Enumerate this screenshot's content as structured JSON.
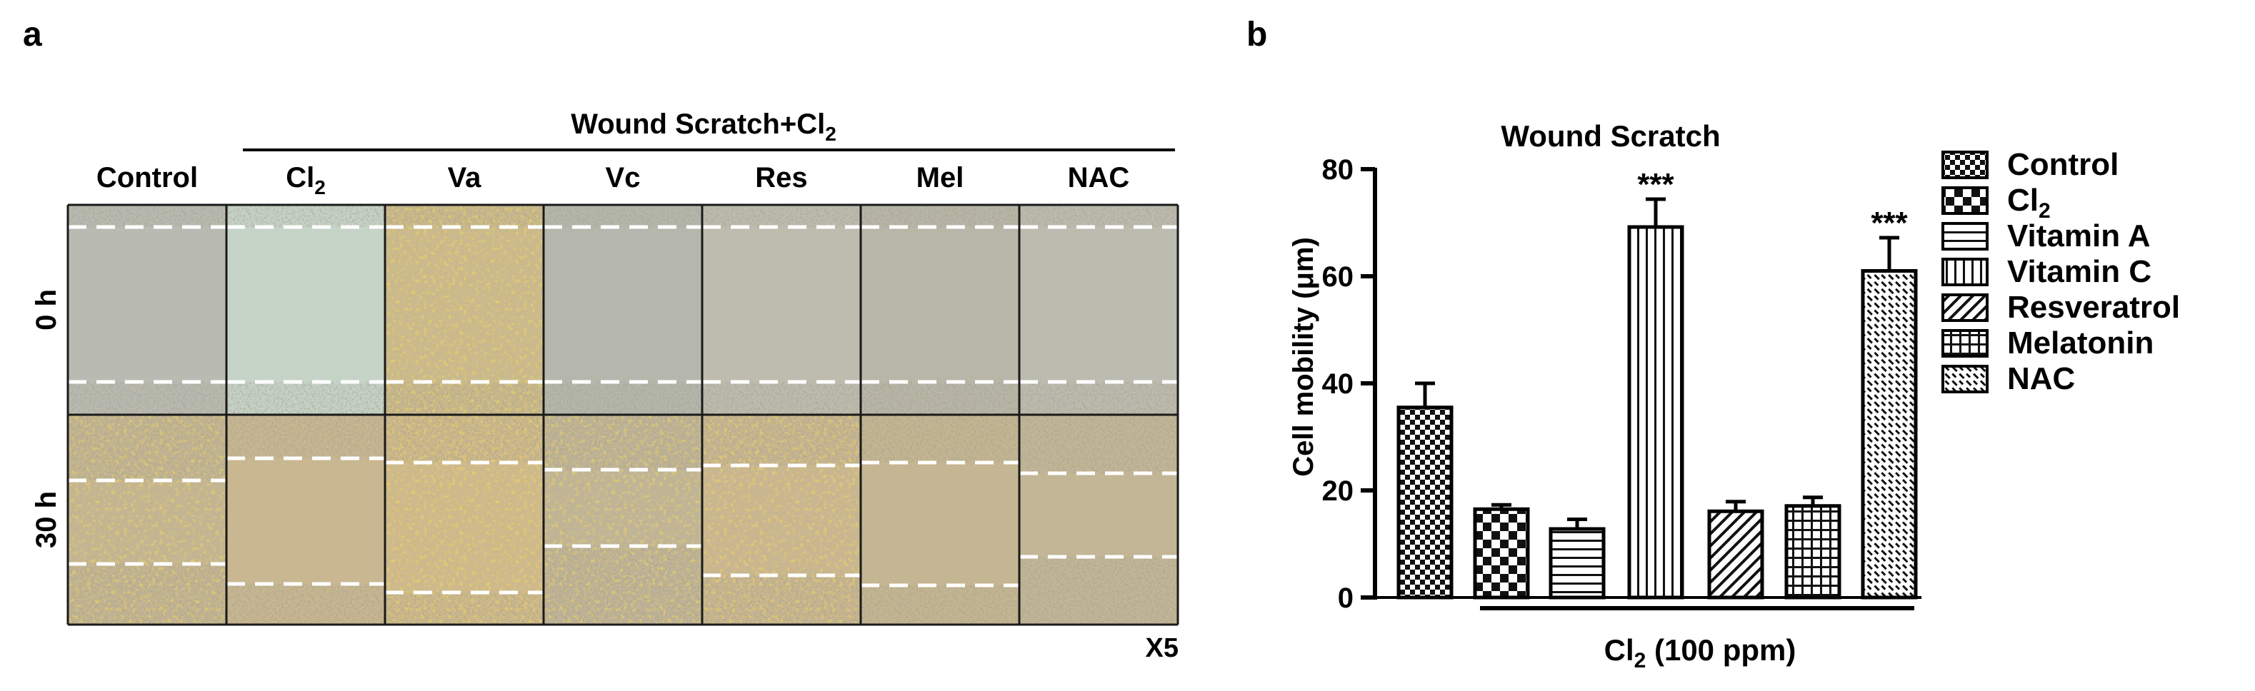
{
  "panel_a": {
    "label": "a",
    "group_header": "Wound Scratch+Cl",
    "group_header_sub": "2",
    "columns": [
      "Control",
      "Cl",
      "Va",
      "Vc",
      "Res",
      "Mel",
      "NAC"
    ],
    "column_subscripts": [
      "",
      "2",
      "",
      "",
      "",
      "",
      ""
    ],
    "rows": [
      "0 h",
      "30 h"
    ],
    "magnification": "X5"
  },
  "chart_data": {
    "type": "bar",
    "panel_label": "b",
    "title": "Wound Scratch",
    "ylabel": "Cell mobility (μm)",
    "ylim": [
      0,
      80
    ],
    "yticks": [
      "0",
      "20",
      "40",
      "60",
      "80"
    ],
    "xlabel_main": "Cl",
    "xlabel_sub": "2",
    "xlabel_rest": " (100 ppm)",
    "categories": [
      "Control",
      "Cl2",
      "Vitamin A",
      "Vitamin C",
      "Resveratrol",
      "Melatonin",
      "NAC"
    ],
    "legend_main": [
      "Control",
      "Cl",
      "Vitamin A",
      "Vitamin C",
      "Resveratrol",
      "Melatonin",
      "NAC"
    ],
    "legend_sub": [
      "",
      "2",
      "",
      "",
      "",
      "",
      ""
    ],
    "values": [
      35.5,
      16.5,
      12.8,
      69.2,
      16.1,
      17.1,
      61.0
    ],
    "errors": [
      4.5,
      0.8,
      1.8,
      5.2,
      1.8,
      1.6,
      6.2
    ],
    "significance": [
      "",
      "",
      "",
      "***",
      "",
      "",
      "***"
    ],
    "grid": false,
    "legend_position": "right"
  }
}
